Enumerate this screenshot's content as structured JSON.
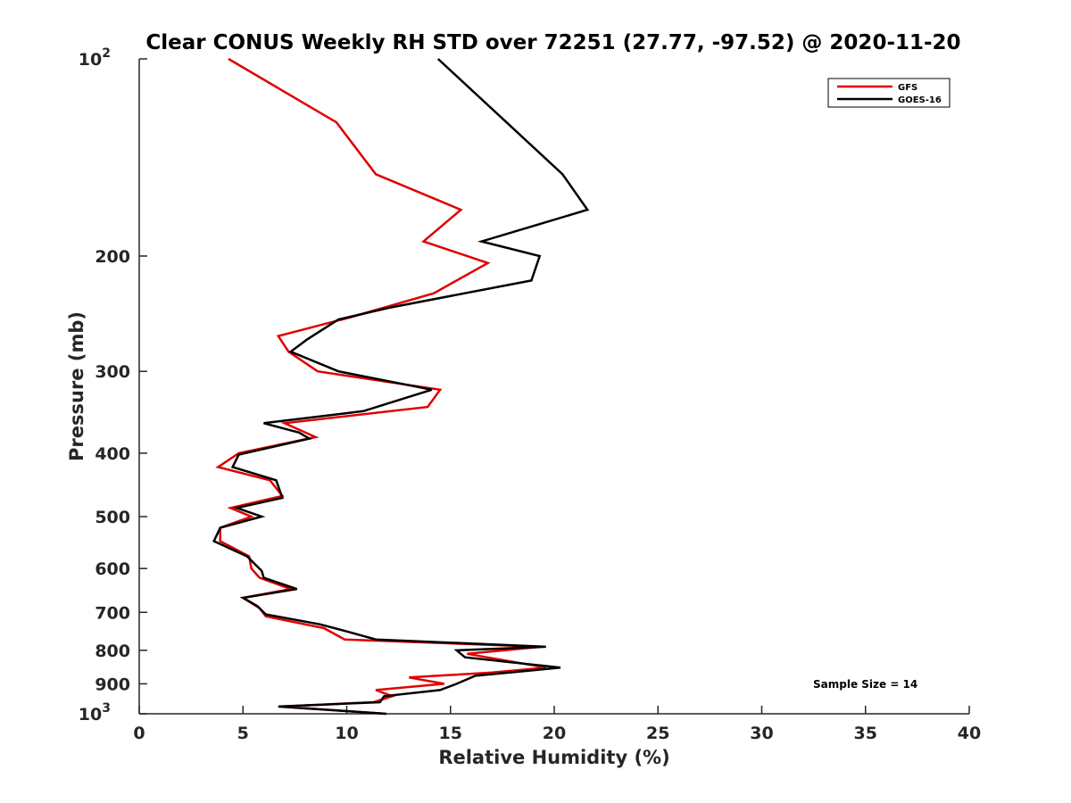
{
  "chart_data": {
    "type": "line",
    "title": "Clear CONUS Weekly RH STD over 72251 (27.77, -97.52) @ 2020-11-20",
    "xlabel": "Relative Humidity (%)",
    "ylabel": "Pressure (mb)",
    "xlim": [
      0,
      40
    ],
    "ylim": [
      1000,
      100
    ],
    "y_scale": "log",
    "y_reversed": true,
    "x_ticks": [
      0,
      5,
      10,
      15,
      20,
      25,
      30,
      35,
      40
    ],
    "y_ticks": [
      100,
      200,
      300,
      400,
      500,
      600,
      700,
      800,
      900,
      1000
    ],
    "y_tick_labels": {
      "200": "200",
      "300": "300",
      "400": "400",
      "500": "500",
      "600": "600",
      "700": "700",
      "800": "800",
      "900": "900"
    },
    "y_tick_label_top": {
      "base": "10",
      "exp": "2"
    },
    "y_tick_label_bottom": {
      "base": "10",
      "exp": "3"
    },
    "grid": false,
    "legend_position": "top-right",
    "annotation": "Sample Size = 14",
    "series": [
      {
        "name": "GFS",
        "color": "#e00000",
        "points": [
          [
            4.3,
            100
          ],
          [
            9.5,
            125
          ],
          [
            11.4,
            150
          ],
          [
            15.5,
            170
          ],
          [
            13.7,
            190
          ],
          [
            16.8,
            205
          ],
          [
            14.2,
            228
          ],
          [
            10.2,
            248
          ],
          [
            6.7,
            265
          ],
          [
            7.2,
            280
          ],
          [
            8.6,
            300
          ],
          [
            14.5,
            320
          ],
          [
            13.9,
            340
          ],
          [
            7.0,
            360
          ],
          [
            8.5,
            378
          ],
          [
            4.8,
            400
          ],
          [
            3.8,
            420
          ],
          [
            6.3,
            440
          ],
          [
            6.9,
            465
          ],
          [
            4.4,
            485
          ],
          [
            5.4,
            500
          ],
          [
            3.9,
            520
          ],
          [
            3.9,
            545
          ],
          [
            5.3,
            575
          ],
          [
            5.4,
            600
          ],
          [
            5.8,
            620
          ],
          [
            7.3,
            645
          ],
          [
            5.0,
            665
          ],
          [
            5.8,
            690
          ],
          [
            6.1,
            710
          ],
          [
            8.9,
            740
          ],
          [
            9.9,
            770
          ],
          [
            19.4,
            790
          ],
          [
            15.8,
            810
          ],
          [
            19.6,
            850
          ],
          [
            17.0,
            865
          ],
          [
            13.0,
            880
          ],
          [
            14.7,
            900
          ],
          [
            11.4,
            920
          ],
          [
            12.2,
            940
          ],
          [
            11.3,
            960
          ],
          [
            6.8,
            975
          ],
          [
            11.9,
            1000
          ]
        ]
      },
      {
        "name": "GOES-16",
        "color": "#000000",
        "points": [
          [
            14.4,
            100
          ],
          [
            17.7,
            125
          ],
          [
            20.4,
            150
          ],
          [
            21.6,
            170
          ],
          [
            16.5,
            190
          ],
          [
            19.3,
            200
          ],
          [
            18.9,
            218
          ],
          [
            12.0,
            240
          ],
          [
            9.6,
            250
          ],
          [
            8.1,
            268
          ],
          [
            7.3,
            280
          ],
          [
            9.6,
            300
          ],
          [
            14.1,
            320
          ],
          [
            10.8,
            345
          ],
          [
            6.0,
            360
          ],
          [
            7.7,
            372
          ],
          [
            8.2,
            380
          ],
          [
            4.8,
            402
          ],
          [
            4.5,
            420
          ],
          [
            6.6,
            440
          ],
          [
            6.9,
            468
          ],
          [
            4.7,
            485
          ],
          [
            5.9,
            500
          ],
          [
            3.9,
            520
          ],
          [
            3.6,
            545
          ],
          [
            5.2,
            575
          ],
          [
            5.9,
            605
          ],
          [
            6.0,
            620
          ],
          [
            7.6,
            645
          ],
          [
            5.0,
            665
          ],
          [
            5.7,
            685
          ],
          [
            6.1,
            705
          ],
          [
            8.7,
            730
          ],
          [
            10.1,
            750
          ],
          [
            11.4,
            770
          ],
          [
            19.6,
            790
          ],
          [
            15.3,
            800
          ],
          [
            15.7,
            820
          ],
          [
            20.3,
            850
          ],
          [
            18.7,
            860
          ],
          [
            16.2,
            875
          ],
          [
            15.3,
            900
          ],
          [
            14.5,
            920
          ],
          [
            11.8,
            940
          ],
          [
            11.6,
            960
          ],
          [
            6.7,
            975
          ],
          [
            11.9,
            1000
          ]
        ]
      }
    ]
  }
}
